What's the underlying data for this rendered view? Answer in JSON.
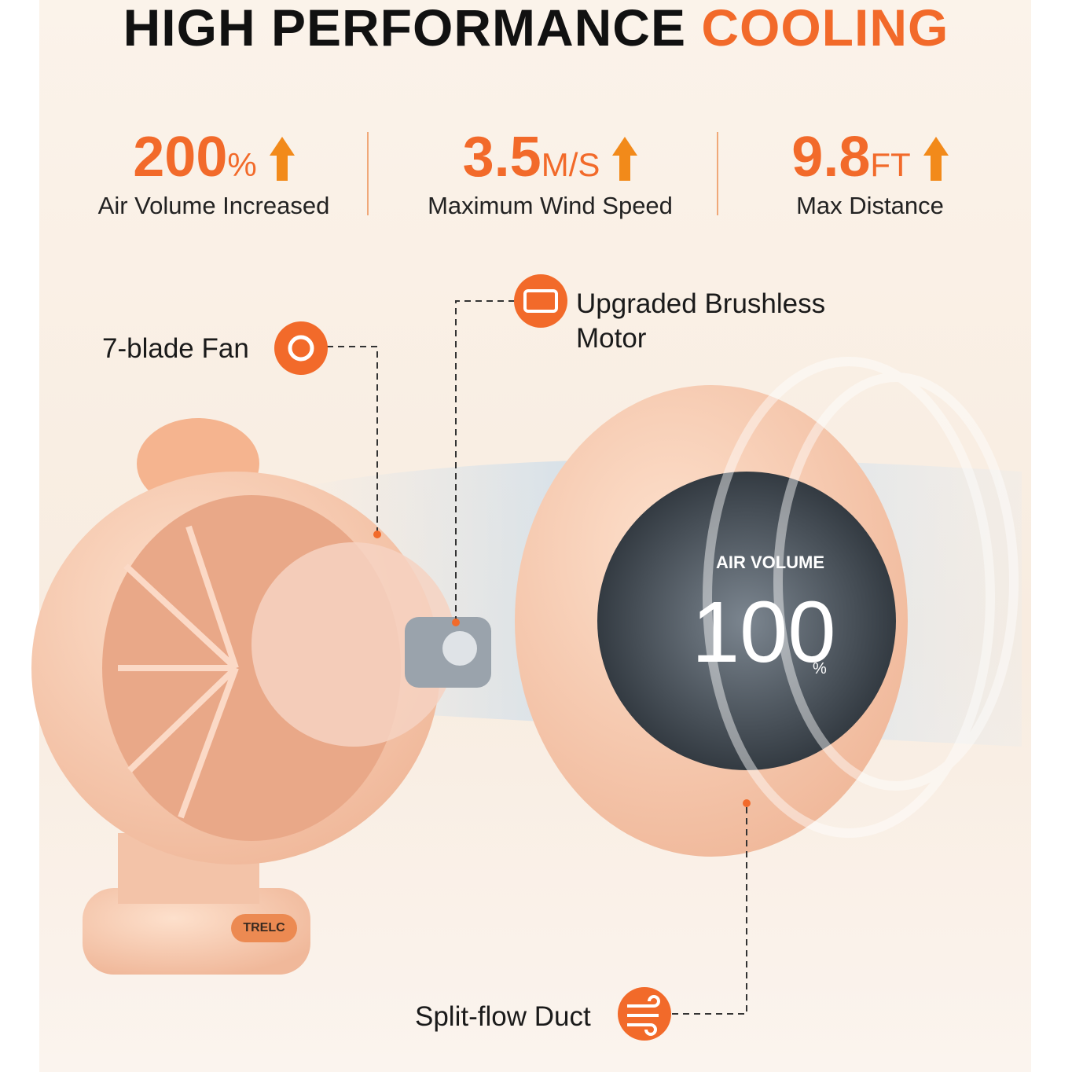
{
  "header": {
    "title": "HIGH PERFORMANCE",
    "title_highlight": "COOLING"
  },
  "stats": [
    {
      "value": "200",
      "unit": "%",
      "label": "Air Volume Increased"
    },
    {
      "value": "3.5",
      "unit": "M/S",
      "label": "Maximum Wind Speed"
    },
    {
      "value": "9.8",
      "unit": "FT",
      "label": "Max Distance"
    }
  ],
  "callouts": [
    {
      "label": "7-blade Fan"
    },
    {
      "lines": [
        "Upgraded Brushless",
        "Motor"
      ]
    },
    {
      "label": "Split-flow Duct"
    }
  ],
  "product": {
    "display_label": "AIR VOLUME",
    "display_value": "100",
    "display_unit": "%",
    "brand": "TRELC"
  }
}
